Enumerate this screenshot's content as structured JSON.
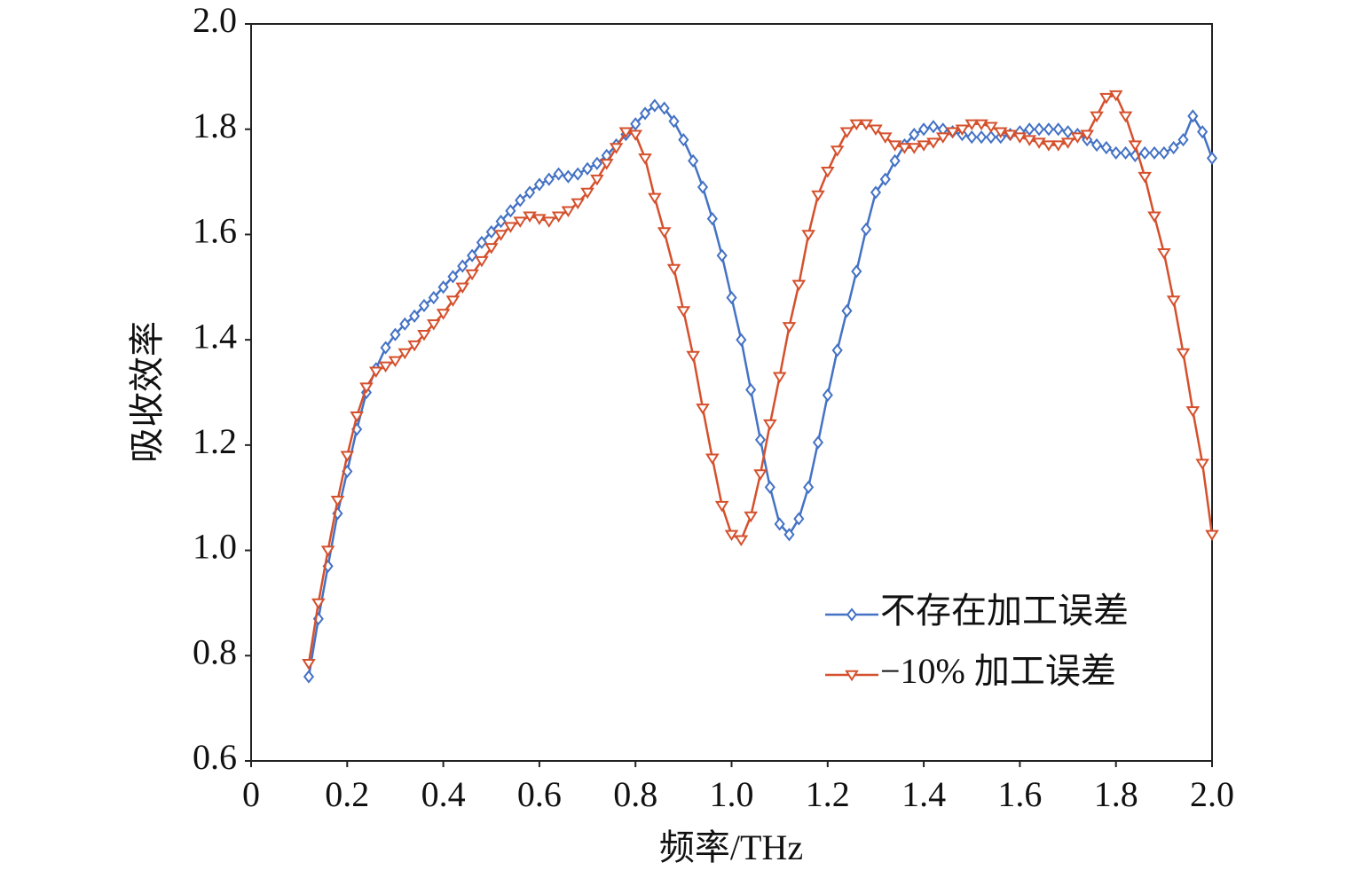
{
  "chart_data": {
    "type": "line",
    "xlabel": "频率/THz",
    "ylabel": "吸收效率",
    "x": [
      0.12,
      0.14,
      0.16,
      0.18,
      0.2,
      0.22,
      0.24,
      0.26,
      0.28,
      0.3,
      0.32,
      0.34,
      0.36,
      0.38,
      0.4,
      0.42,
      0.44,
      0.46,
      0.48,
      0.5,
      0.52,
      0.54,
      0.56,
      0.58,
      0.6,
      0.62,
      0.64,
      0.66,
      0.68,
      0.7,
      0.72,
      0.74,
      0.76,
      0.78,
      0.8,
      0.82,
      0.84,
      0.86,
      0.88,
      0.9,
      0.92,
      0.94,
      0.96,
      0.98,
      1,
      1.02,
      1.04,
      1.06,
      1.08,
      1.1,
      1.12,
      1.14,
      1.16,
      1.18,
      1.2,
      1.22,
      1.24,
      1.26,
      1.28,
      1.3,
      1.32,
      1.34,
      1.36,
      1.38,
      1.4,
      1.42,
      1.44,
      1.46,
      1.48,
      1.5,
      1.52,
      1.54,
      1.56,
      1.58,
      1.6,
      1.62,
      1.64,
      1.66,
      1.68,
      1.7,
      1.72,
      1.74,
      1.76,
      1.78,
      1.8,
      1.82,
      1.84,
      1.86,
      1.88,
      1.9,
      1.92,
      1.94,
      1.96,
      1.98,
      2
    ],
    "series": [
      {
        "name": "不存在加工误差",
        "color": "#4472c4",
        "marker": "diamond",
        "values": [
          0.76,
          0.87,
          0.97,
          1.07,
          1.15,
          1.23,
          1.3,
          1.345,
          1.385,
          1.41,
          1.43,
          1.445,
          1.465,
          1.48,
          1.5,
          1.52,
          1.54,
          1.56,
          1.585,
          1.605,
          1.625,
          1.645,
          1.665,
          1.68,
          1.695,
          1.705,
          1.715,
          1.71,
          1.715,
          1.725,
          1.735,
          1.75,
          1.77,
          1.79,
          1.81,
          1.83,
          1.845,
          1.84,
          1.815,
          1.78,
          1.74,
          1.69,
          1.63,
          1.56,
          1.48,
          1.4,
          1.305,
          1.21,
          1.12,
          1.05,
          1.03,
          1.06,
          1.12,
          1.205,
          1.295,
          1.38,
          1.455,
          1.53,
          1.61,
          1.68,
          1.705,
          1.74,
          1.77,
          1.79,
          1.8,
          1.805,
          1.8,
          1.795,
          1.79,
          1.785,
          1.785,
          1.785,
          1.785,
          1.79,
          1.795,
          1.8,
          1.8,
          1.8,
          1.8,
          1.795,
          1.79,
          1.78,
          1.77,
          1.765,
          1.755,
          1.755,
          1.75,
          1.755,
          1.755,
          1.755,
          1.765,
          1.78,
          1.825,
          1.795,
          1.745
        ]
      },
      {
        "name": "−10% 加工误差",
        "color": "#d5502c",
        "marker": "triangle-down",
        "values": [
          0.785,
          0.9,
          1,
          1.095,
          1.18,
          1.255,
          1.31,
          1.34,
          1.35,
          1.36,
          1.375,
          1.39,
          1.41,
          1.43,
          1.45,
          1.475,
          1.5,
          1.525,
          1.55,
          1.575,
          1.6,
          1.615,
          1.625,
          1.635,
          1.63,
          1.625,
          1.635,
          1.645,
          1.66,
          1.68,
          1.705,
          1.735,
          1.765,
          1.795,
          1.79,
          1.745,
          1.67,
          1.605,
          1.535,
          1.455,
          1.37,
          1.27,
          1.175,
          1.085,
          1.03,
          1.02,
          1.065,
          1.145,
          1.24,
          1.33,
          1.425,
          1.505,
          1.6,
          1.675,
          1.72,
          1.76,
          1.795,
          1.81,
          1.81,
          1.8,
          1.785,
          1.77,
          1.765,
          1.765,
          1.77,
          1.775,
          1.785,
          1.795,
          1.8,
          1.81,
          1.81,
          1.805,
          1.795,
          1.79,
          1.785,
          1.78,
          1.775,
          1.77,
          1.77,
          1.775,
          1.785,
          1.79,
          1.825,
          1.86,
          1.865,
          1.825,
          1.77,
          1.71,
          1.635,
          1.565,
          1.475,
          1.375,
          1.265,
          1.165,
          1.03
        ]
      }
    ],
    "xlim": [
      0,
      2
    ],
    "xticks": [
      0,
      0.2,
      0.4,
      0.6,
      0.8,
      {
        "value": 1,
        "label": "1.0"
      },
      1.2,
      1.4,
      1.6,
      1.8,
      {
        "value": 2,
        "label": "2.0"
      }
    ],
    "ylim": [
      0.6,
      2
    ],
    "yticks": [
      0.6,
      0.8,
      {
        "value": 1,
        "label": "1.0"
      },
      1.2,
      1.4,
      1.6,
      1.8,
      {
        "value": 2,
        "label": "2.0"
      }
    ],
    "grid": false,
    "legend_position": "lower right"
  }
}
